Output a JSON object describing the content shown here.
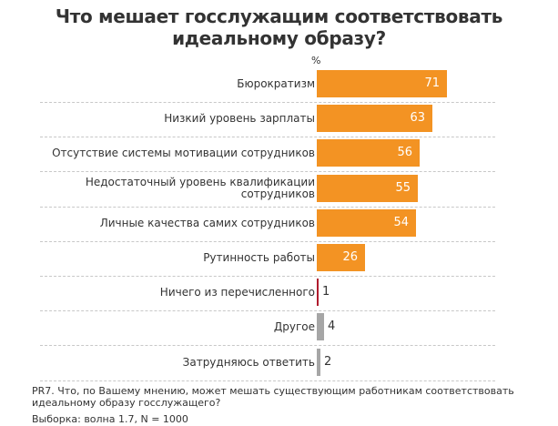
{
  "chart_data": {
    "type": "bar",
    "orientation": "horizontal",
    "title": "Что мешает госслужащим соответствовать идеальному образу?",
    "title_lines": [
      "Что мешает госслужащим соответствовать",
      "идеальному образу?"
    ],
    "unit_label": "%",
    "xlim": [
      0,
      100
    ],
    "grid": false,
    "categories": [
      "Бюрократизм",
      "Низкий уровень зарплаты",
      "Отсутствие системы мотивации сотрудников",
      "Недостаточный уровень квалификации сотрудников",
      "Личные качества самих сотрудников",
      "Рутинность работы",
      "Ничего из перечисленного",
      "Другое",
      "Затрудняюсь ответить"
    ],
    "category_lines": [
      [
        "Бюрократизм"
      ],
      [
        "Низкий уровень зарплаты"
      ],
      [
        "Отсутствие системы мотивации сотрудников"
      ],
      [
        "Недостаточный уровень квалификации",
        "сотрудников"
      ],
      [
        "Личные качества самих сотрудников"
      ],
      [
        "Рутинность работы"
      ],
      [
        "Ничего из перечисленного"
      ],
      [
        "Другое"
      ],
      [
        "Затрудняюсь ответить"
      ]
    ],
    "values": [
      71,
      63,
      56,
      55,
      54,
      26,
      1,
      4,
      2
    ],
    "colors": [
      "#f39323",
      "#f39323",
      "#f39323",
      "#f39323",
      "#f39323",
      "#f39323",
      "#b01c2e",
      "#a6a6a6",
      "#a6a6a6"
    ]
  },
  "footer": {
    "question": "PR7. Что, по Вашему мнению, может мешать существующим работникам соответствовать идеальному образу госслужащего?",
    "sample": "Выборка: волна 1.7, N = 1000"
  }
}
